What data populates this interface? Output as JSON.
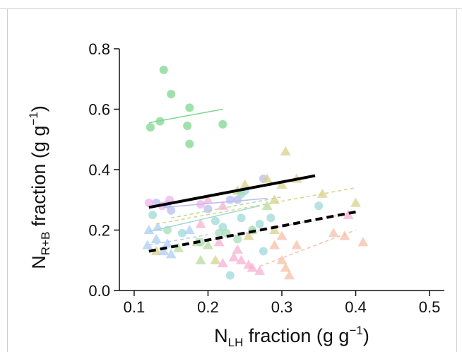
{
  "chart_data": {
    "type": "scatter",
    "title": "",
    "xlabel": {
      "main": "N",
      "sub": "LH",
      "rest": " fraction (g g",
      "sup": "−1",
      "end": ")"
    },
    "ylabel": {
      "main": "N",
      "sub": "R+B",
      "rest": " fraction (g g",
      "sup": "−1",
      "end": ")"
    },
    "xlim": [
      0.08,
      0.52
    ],
    "ylim": [
      0.0,
      0.8
    ],
    "xticks": [
      0.1,
      0.2,
      0.3,
      0.4,
      0.5
    ],
    "xtick_labels": [
      "0.1",
      "0.2",
      "0.3",
      "0.4",
      "0.5"
    ],
    "yticks": [
      0.0,
      0.2,
      0.4,
      0.6,
      0.8
    ],
    "ytick_labels": [
      "0.0",
      "0.2",
      "0.4",
      "0.6",
      "0.8"
    ],
    "grid": false,
    "series": [
      {
        "color": "#7fd68f",
        "marker": "circle",
        "points": [
          [
            0.14,
            0.73
          ],
          [
            0.15,
            0.65
          ],
          [
            0.175,
            0.605
          ],
          [
            0.135,
            0.56
          ],
          [
            0.122,
            0.54
          ],
          [
            0.172,
            0.545
          ],
          [
            0.22,
            0.55
          ],
          [
            0.175,
            0.485
          ]
        ]
      },
      {
        "color": "#b9bdf0",
        "marker": "circle",
        "points": [
          [
            0.13,
            0.29
          ],
          [
            0.145,
            0.285
          ],
          [
            0.15,
            0.265
          ],
          [
            0.2,
            0.27
          ],
          [
            0.23,
            0.3
          ],
          [
            0.24,
            0.3
          ],
          [
            0.275,
            0.37
          ]
        ]
      },
      {
        "color": "#f0b4e8",
        "marker": "circle",
        "points": [
          [
            0.12,
            0.29
          ],
          [
            0.138,
            0.28
          ],
          [
            0.148,
            0.3
          ],
          [
            0.19,
            0.285
          ]
        ]
      },
      {
        "color": "#9fd8d8",
        "marker": "circle",
        "points": [
          [
            0.125,
            0.25
          ],
          [
            0.21,
            0.23
          ],
          [
            0.22,
            0.21
          ],
          [
            0.245,
            0.24
          ],
          [
            0.27,
            0.22
          ],
          [
            0.25,
            0.33
          ],
          [
            0.245,
            0.32
          ],
          [
            0.26,
            0.2
          ],
          [
            0.275,
            0.13
          ],
          [
            0.285,
            0.24
          ],
          [
            0.23,
            0.05
          ],
          [
            0.35,
            0.28
          ],
          [
            0.165,
            0.19
          ]
        ]
      },
      {
        "color": "#a8dcb8",
        "marker": "circle",
        "points": [
          [
            0.145,
            0.2
          ],
          [
            0.19,
            0.16
          ],
          [
            0.215,
            0.19
          ],
          [
            0.225,
            0.19
          ],
          [
            0.24,
            0.17
          ]
        ]
      },
      {
        "color": "#d8d28a",
        "marker": "triangle",
        "points": [
          [
            0.28,
            0.37
          ],
          [
            0.3,
            0.35
          ],
          [
            0.305,
            0.46
          ],
          [
            0.32,
            0.37
          ],
          [
            0.355,
            0.32
          ],
          [
            0.4,
            0.29
          ],
          [
            0.25,
            0.35
          ],
          [
            0.29,
            0.3
          ],
          [
            0.255,
            0.18
          ],
          [
            0.29,
            0.2
          ],
          [
            0.21,
            0.1
          ],
          [
            0.13,
            0.13
          ]
        ]
      },
      {
        "color": "#b4dc9a",
        "marker": "triangle",
        "points": [
          [
            0.24,
            0.33
          ],
          [
            0.28,
            0.28
          ],
          [
            0.26,
            0.2
          ],
          [
            0.16,
            0.14
          ],
          [
            0.185,
            0.16
          ],
          [
            0.2,
            0.15
          ],
          [
            0.19,
            0.1
          ]
        ]
      },
      {
        "color": "#f6c0a8",
        "marker": "triangle",
        "points": [
          [
            0.3,
            0.18
          ],
          [
            0.3,
            0.1
          ],
          [
            0.32,
            0.15
          ],
          [
            0.37,
            0.19
          ],
          [
            0.385,
            0.18
          ],
          [
            0.41,
            0.16
          ],
          [
            0.29,
            0.15
          ],
          [
            0.31,
            0.05
          ],
          [
            0.305,
            0.075
          ]
        ]
      },
      {
        "color": "#f7b0d0",
        "marker": "triangle",
        "points": [
          [
            0.19,
            0.22
          ],
          [
            0.2,
            0.3
          ],
          [
            0.22,
            0.28
          ],
          [
            0.235,
            0.11
          ],
          [
            0.245,
            0.1
          ],
          [
            0.255,
            0.085
          ],
          [
            0.26,
            0.075
          ],
          [
            0.27,
            0.065
          ],
          [
            0.22,
            0.09
          ],
          [
            0.24,
            0.135
          ],
          [
            0.39,
            0.25
          ],
          [
            0.215,
            0.16
          ]
        ]
      },
      {
        "color": "#aecdf6",
        "marker": "triangle",
        "points": [
          [
            0.12,
            0.2
          ],
          [
            0.118,
            0.15
          ],
          [
            0.132,
            0.21
          ],
          [
            0.14,
            0.13
          ],
          [
            0.145,
            0.155
          ],
          [
            0.15,
            0.12
          ],
          [
            0.175,
            0.2
          ],
          [
            0.13,
            0.17
          ]
        ]
      }
    ],
    "fit_lines": [
      {
        "style": "solid",
        "color": "#7fd68f",
        "width": 1.5,
        "x": [
          0.12,
          0.22
        ],
        "y": [
          0.555,
          0.6
        ]
      },
      {
        "style": "solid",
        "color": "#b9bdf0",
        "width": 1.5,
        "x": [
          0.14,
          0.28
        ],
        "y": [
          0.275,
          0.305
        ]
      },
      {
        "style": "solid",
        "color": "#9fd8d8",
        "width": 1.5,
        "x": [
          0.12,
          0.27
        ],
        "y": [
          0.195,
          0.28
        ]
      },
      {
        "style": "dashed",
        "color": "#d8d28a",
        "width": 1.5,
        "x": [
          0.13,
          0.4
        ],
        "y": [
          0.22,
          0.34
        ]
      },
      {
        "style": "dashed",
        "color": "#b4dc9a",
        "width": 1.5,
        "x": [
          0.15,
          0.3
        ],
        "y": [
          0.24,
          0.31
        ]
      },
      {
        "style": "dashed",
        "color": "#f7b0d0",
        "width": 1.5,
        "x": [
          0.2,
          0.39
        ],
        "y": [
          0.165,
          0.255
        ]
      },
      {
        "style": "dashed",
        "color": "#f6c0a8",
        "width": 1.5,
        "x": [
          0.27,
          0.4
        ],
        "y": [
          0.08,
          0.2
        ]
      },
      {
        "style": "dashed",
        "color": "#aecdf6",
        "width": 1.5,
        "x": [
          0.12,
          0.2
        ],
        "y": [
          0.15,
          0.185
        ]
      },
      {
        "style": "solid",
        "color": "#000000",
        "width": 4,
        "x": [
          0.12,
          0.345
        ],
        "y": [
          0.275,
          0.38
        ]
      },
      {
        "style": "dashed",
        "color": "#000000",
        "width": 4,
        "x": [
          0.12,
          0.4
        ],
        "y": [
          0.13,
          0.26
        ]
      }
    ]
  }
}
